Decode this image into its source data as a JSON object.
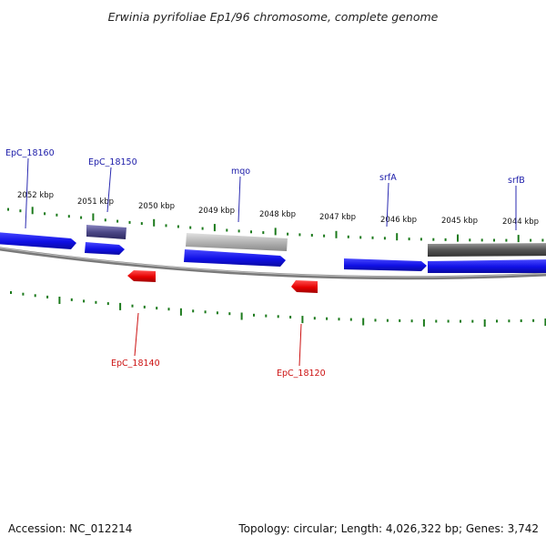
{
  "title": "Erwinia pyrifoliae Ep1/96 chromosome, complete genome",
  "footer": {
    "accession": "Accession: NC_012214",
    "summary": "Topology: circular; Length: 4,026,322 bp; Genes: 3,742"
  },
  "colors": {
    "forward_gene": "#1010e6",
    "reverse_gene": "#e60000",
    "rna_like": "#5a5590",
    "mqo_block": "#b4b4b4",
    "dark_block": "#5a5a5a",
    "backbone": "#8c8c8c",
    "ticks": "#1c7a1c"
  },
  "kbp_labels": [
    "2052 kbp",
    "2051 kbp",
    "2050 kbp",
    "2049 kbp",
    "2048 kbp",
    "2047 kbp",
    "2046 kbp",
    "2045 kbp",
    "2044 kbp"
  ],
  "gene_labels": {
    "epc18160": "EpC_18160",
    "epc18150": "EpC_18150",
    "mqo": "mqo",
    "srfa": "srfA",
    "srfb": "srfB",
    "epc18140": "EpC_18140",
    "epc18120": "EpC_18120"
  }
}
